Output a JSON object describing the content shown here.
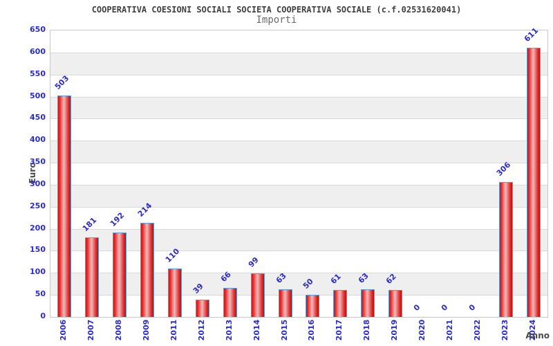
{
  "chart_data": {
    "type": "bar",
    "title": "COOPERATIVA COESIONI SOCIALI SOCIETA COOPERATIVA SOCIALE (c.f.02531620041)",
    "subtitle": "Importi",
    "xlabel": "Anno",
    "ylabel": "Euro",
    "categories": [
      "2006",
      "2007",
      "2008",
      "2009",
      "2011",
      "2012",
      "2013",
      "2014",
      "2015",
      "2016",
      "2017",
      "2018",
      "2019",
      "2020",
      "2021",
      "2022",
      "2023",
      "2024"
    ],
    "values": [
      503,
      181,
      192,
      214,
      110,
      39,
      66,
      99,
      63,
      50,
      61,
      63,
      62,
      0,
      0,
      0,
      306,
      611
    ],
    "ylim": [
      0,
      650
    ],
    "ytick_step": 50,
    "yticks": [
      0,
      50,
      100,
      150,
      200,
      250,
      300,
      350,
      400,
      450,
      500,
      550,
      600,
      650
    ],
    "grid": true,
    "legend": false,
    "value_labels_rotated_deg": -45,
    "xtick_rotation_deg": -90,
    "colors": {
      "bar_fill": "#e03030",
      "bar_fill_highlight": "#f5b8b8",
      "bar_border": "#5f9fd8",
      "tick_and_value_text": "#2a2ad2",
      "title_text": "#3f3f3f",
      "subtitle_text": "#6b6b6b",
      "axis_name_text": "#4a4a4a",
      "band_stripe": "#efefef",
      "gridline": "#d9d9d9",
      "plot_border": "#c8c8c8",
      "background": "#ffffff"
    }
  }
}
